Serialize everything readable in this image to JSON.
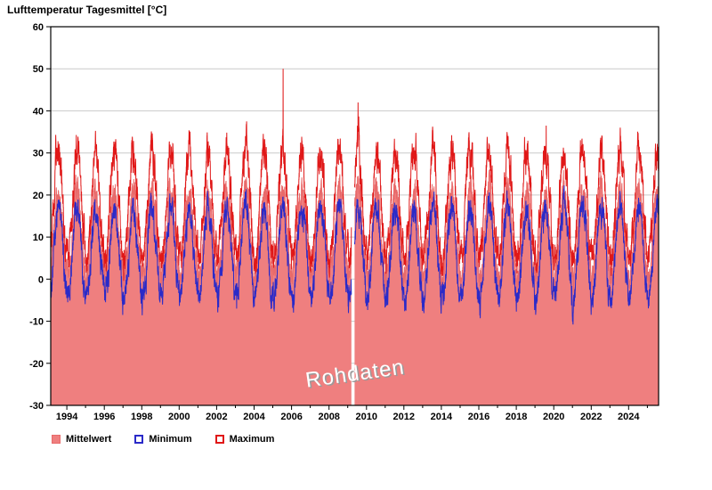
{
  "header": {
    "title": "Lufttemperatur Tagesmittel [°C]"
  },
  "legend": {
    "items": [
      {
        "label": "Mittelwert"
      },
      {
        "label": "Minimum"
      },
      {
        "label": "Maximum"
      }
    ]
  },
  "chart_data": {
    "type": "line",
    "title": "Lufttemperatur Tagesmittel [°C]",
    "xlabel": "",
    "ylabel": "",
    "x_range": [
      1993.14,
      2025.6
    ],
    "ylim": [
      -30,
      60
    ],
    "y_ticks": [
      -30,
      -20,
      -10,
      0,
      10,
      20,
      30,
      40,
      50,
      60
    ],
    "x_ticks": [
      1994,
      1996,
      1998,
      2000,
      2002,
      2004,
      2006,
      2008,
      2010,
      2012,
      2014,
      2016,
      2018,
      2020,
      2022,
      2024
    ],
    "grid": "horizontal",
    "grid_color": "#c9c9c9",
    "axis_color": "#000000",
    "legend_position": "bottom-left",
    "watermark": "Rohdaten",
    "sample_step_days": 2,
    "series": [
      {
        "name": "Mittelwert",
        "type": "area",
        "color": "#ef7f7f",
        "edge_color": "#e86a6a",
        "annual_mean": 11.0,
        "annual_amplitude": 10.3,
        "noise": 1.5,
        "coldest_day_fraction": 0.045
      },
      {
        "name": "Minimum",
        "type": "line",
        "color": "#2a2ac8",
        "annual_mean": 6.3,
        "annual_amplitude": 11.0,
        "noise": 1.7,
        "coldest_day_fraction": 0.045
      },
      {
        "name": "Maximum",
        "type": "line",
        "color": "#e01818",
        "annual_mean": 17.5,
        "annual_amplitude": 13.0,
        "noise": 2.1,
        "coldest_day_fraction": 0.045
      }
    ],
    "gaps": [
      {
        "x_start": 2009.2,
        "x_end": 2009.36
      }
    ],
    "extremes": [
      {
        "series": "Maximum",
        "x": 2005.55,
        "value": 50
      },
      {
        "series": "Maximum",
        "x": 2009.55,
        "value": 42
      },
      {
        "series": "Maximum",
        "x": 2003.6,
        "value": 37.5
      },
      {
        "series": "Maximum",
        "x": 2019.6,
        "value": 36.5
      },
      {
        "series": "Minimum",
        "x": 1996.07,
        "value": -5.5
      },
      {
        "series": "Minimum",
        "x": 2003.07,
        "value": -7
      },
      {
        "series": "Minimum",
        "x": 2012.05,
        "value": -7.5
      }
    ]
  }
}
